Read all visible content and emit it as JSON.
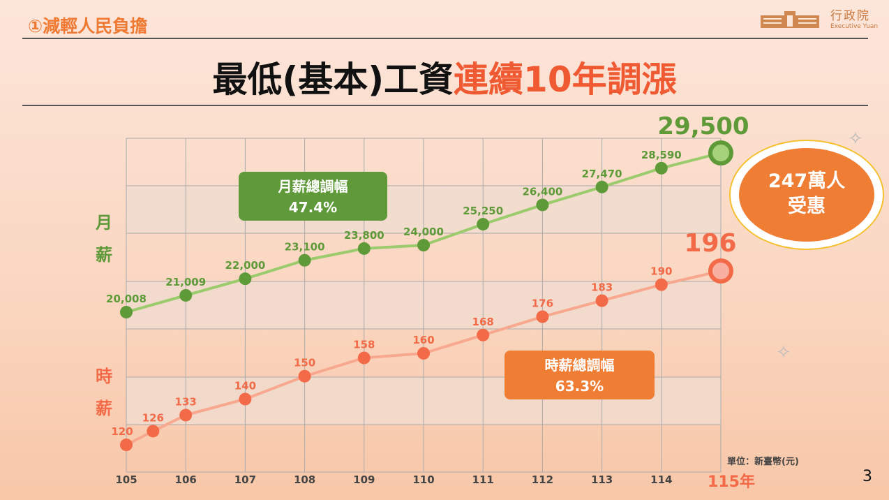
{
  "header": {
    "section": "①減輕人民負擔",
    "title_part1": "最低(基本)工資",
    "title_part2": "連續10年調漲",
    "logo_cn": "行政院",
    "logo_en": "Executive Yuan"
  },
  "page_number": "3",
  "colors": {
    "monthly": "#5e9a38",
    "monthly_line": "#9ccb6e",
    "hourly": "#f26a47",
    "hourly_line": "#f8a88e",
    "accent_orange": "#ef7d33"
  },
  "chart_data": {
    "type": "line",
    "x_tick_labels": [
      "105",
      "106",
      "107",
      "108",
      "109",
      "110",
      "111",
      "112",
      "113",
      "114",
      "115年"
    ],
    "unit_label": "單位：新臺幣(元)",
    "grid": true,
    "series": [
      {
        "name": "月薪",
        "x": [
          105,
          106,
          107,
          108,
          109,
          110,
          111,
          112,
          113,
          114,
          115
        ],
        "values": [
          20008,
          21009,
          22000,
          23100,
          23800,
          24000,
          25250,
          26400,
          27470,
          28590,
          29500
        ],
        "labels": [
          "20,008",
          "21,009",
          "22,000",
          "23,100",
          "23,800",
          "24,000",
          "25,250",
          "26,400",
          "27,470",
          "28,590",
          "29,500"
        ]
      },
      {
        "name": "時薪",
        "x": [
          105,
          105.45,
          106,
          107,
          108,
          109,
          110,
          111,
          112,
          113,
          114,
          115
        ],
        "values": [
          120,
          126,
          133,
          140,
          150,
          158,
          160,
          168,
          176,
          183,
          190,
          196
        ],
        "labels": [
          "120",
          "126",
          "133",
          "140",
          "150",
          "158",
          "160",
          "168",
          "176",
          "183",
          "190",
          "196"
        ]
      }
    ],
    "annotations": {
      "monthly_box_title": "月薪總調幅",
      "monthly_box_value": "47.4%",
      "hourly_box_title": "時薪總調幅",
      "hourly_box_value": "63.3%",
      "beneficiaries": "247萬人",
      "beneficiaries_2": "受惠"
    }
  }
}
